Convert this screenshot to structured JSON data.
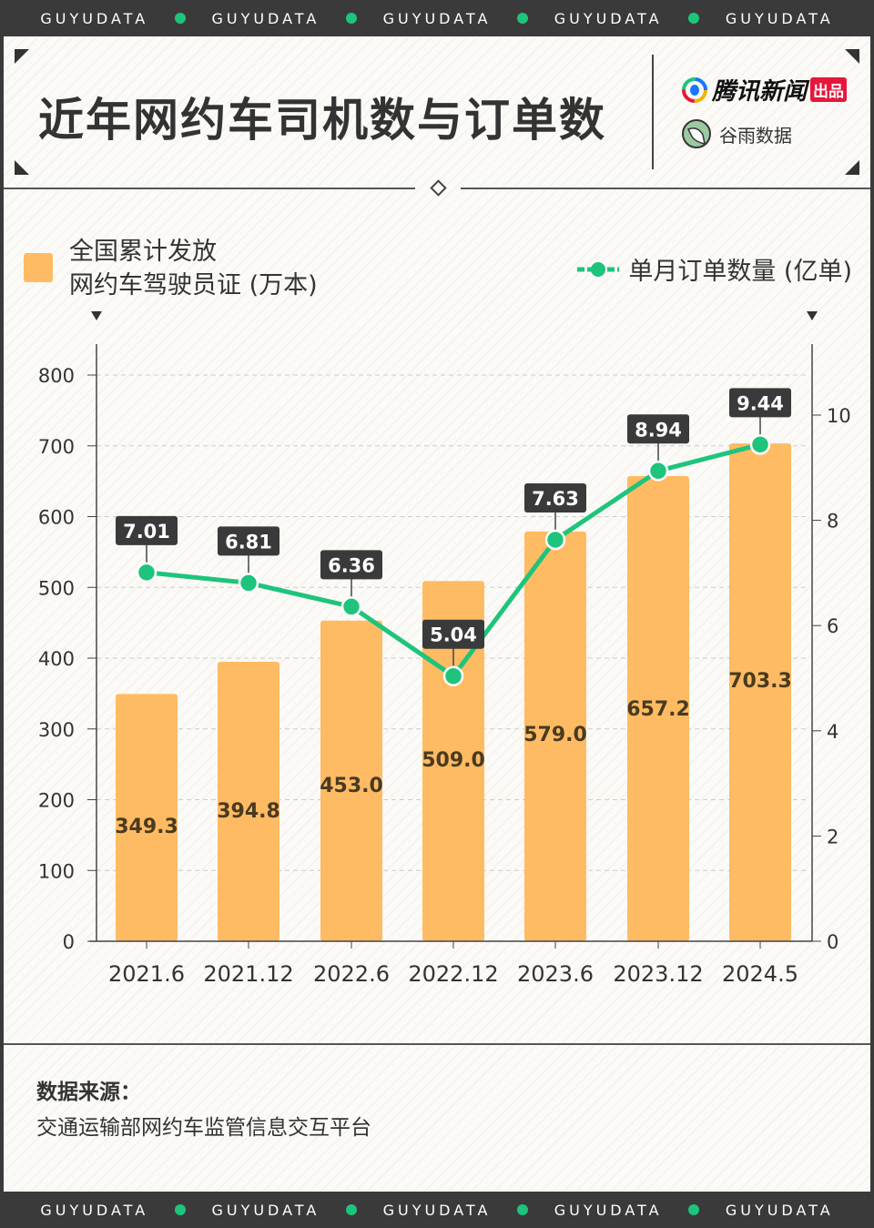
{
  "band_text": "GUYUDATA",
  "title": "近年网约车司机数与订单数",
  "logos": {
    "tencent": "腾讯新闻",
    "tencent_badge": "出品",
    "guyu": "谷雨数据",
    "guyu_sub": "GUYUDATA"
  },
  "chart_data": {
    "type": "bar+line",
    "categories": [
      "2021.6",
      "2021.12",
      "2022.6",
      "2022.12",
      "2023.6",
      "2023.12",
      "2024.5"
    ],
    "series": [
      {
        "name": "全国累计发放网约车驾驶员证 (万本)",
        "type": "bar",
        "axis": "left",
        "color": "#ffbb63",
        "values": [
          349.3,
          394.8,
          453.0,
          509.0,
          579.0,
          657.2,
          703.3
        ],
        "labels": [
          "349.3",
          "394.8",
          "453.0",
          "509.0",
          "579.0",
          "657.2",
          "703.3"
        ]
      },
      {
        "name": "单月订单数量 (亿单)",
        "type": "line",
        "axis": "right",
        "color": "#1ec47c",
        "values": [
          7.01,
          6.81,
          6.36,
          5.04,
          7.63,
          8.94,
          9.44
        ],
        "labels": [
          "7.01",
          "6.81",
          "6.36",
          "5.04",
          "7.63",
          "8.94",
          "9.44"
        ]
      }
    ],
    "left_axis": {
      "ylim": [
        0,
        800
      ],
      "ticks": [
        "0",
        "100",
        "200",
        "300",
        "400",
        "500",
        "600",
        "700",
        "800"
      ]
    },
    "right_axis": {
      "ylim": [
        0,
        10
      ],
      "ticks": [
        "0",
        "2",
        "4",
        "6",
        "8",
        "10"
      ]
    },
    "grid": true
  },
  "legend": {
    "bar_line1": "全国累计发放",
    "bar_line2": "网约车驾驶员证 (万本)",
    "line": "单月订单数量 (亿单)"
  },
  "source": {
    "label": "数据来源：",
    "text": "交通运输部网约车监管信息交互平台"
  }
}
